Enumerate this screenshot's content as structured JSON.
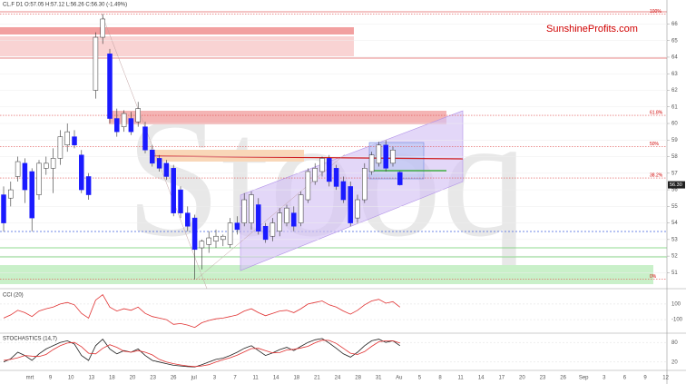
{
  "chart_data": {
    "type": "candlestick",
    "title": "CL.F  D1  O:57.05  H:57.12  L:56.26  C:56.30  (-1.49%)",
    "brand": "SunshineProfits.com",
    "watermark": "Stooq",
    "up_color": "#ffffff",
    "down_color": "#1a1aff",
    "ylim": [
      50.2,
      66.9
    ],
    "yticks": [
      51,
      52,
      53,
      54,
      55,
      56,
      57,
      58,
      59,
      60,
      61,
      62,
      63,
      64,
      65,
      66
    ],
    "last_price": {
      "value": 56.3,
      "label": "56.30"
    },
    "fib_levels": [
      {
        "label": "100%",
        "price": 66.6
      },
      {
        "label": "61.8%",
        "price": 60.49
      },
      {
        "label": "50%",
        "price": 58.6
      },
      {
        "label": "38.2%",
        "price": 56.71
      },
      {
        "label": "0%",
        "price": 50.6
      }
    ],
    "open": [
      55.7,
      55.5,
      56.8,
      57.6,
      57.1,
      55.7,
      57.3,
      57.3,
      57.9,
      58.7,
      59.2,
      58.1,
      56.8,
      62.0,
      65.2,
      64.2,
      60.3,
      59.8,
      60.3,
      60.1,
      59.8,
      58.4,
      57.9,
      57.6,
      57.3,
      56.0,
      54.6,
      54.3,
      52.5,
      52.7,
      52.9,
      53.0,
      52.7,
      54.0,
      54.0,
      54.0,
      55.1,
      53.8,
      53.2,
      53.5,
      54.0,
      54.6,
      54.0,
      55.4,
      56.5,
      57.1,
      57.9,
      57.3,
      56.5,
      56.2,
      54.3,
      55.4,
      57.1,
      57.6,
      58.7,
      57.6,
      57.05
    ],
    "high": [
      56.2,
      56.5,
      58.0,
      57.9,
      57.3,
      57.8,
      58.0,
      58.5,
      59.6,
      60.0,
      59.6,
      58.4,
      57.0,
      65.5,
      66.6,
      64.5,
      60.9,
      60.8,
      60.7,
      61.3,
      60.1,
      58.7,
      58.1,
      57.8,
      57.5,
      56.2,
      55.0,
      54.5,
      53.0,
      53.5,
      53.6,
      53.3,
      54.3,
      54.4,
      55.8,
      55.9,
      55.5,
      54.0,
      54.3,
      54.9,
      55.1,
      55.0,
      55.9,
      57.3,
      57.6,
      58.0,
      58.1,
      57.5,
      56.8,
      56.5,
      55.7,
      57.6,
      58.3,
      58.9,
      59.0,
      58.6,
      57.12
    ],
    "low": [
      53.5,
      55.0,
      56.5,
      55.2,
      53.5,
      55.4,
      56.9,
      55.8,
      57.5,
      58.3,
      58.5,
      55.8,
      55.4,
      61.5,
      64.8,
      60.0,
      59.2,
      59.5,
      59.3,
      59.8,
      58.2,
      57.4,
      57.1,
      56.6,
      54.4,
      54.3,
      53.5,
      50.6,
      51.2,
      52.2,
      52.5,
      52.6,
      52.5,
      53.3,
      53.8,
      53.6,
      53.3,
      52.8,
      52.9,
      53.2,
      53.8,
      53.5,
      53.8,
      55.2,
      56.3,
      56.8,
      56.2,
      56.0,
      55.2,
      53.8,
      54.0,
      55.2,
      56.9,
      57.4,
      57.1,
      57.4,
      56.26
    ],
    "close": [
      54.0,
      56.0,
      57.7,
      56.0,
      54.3,
      57.6,
      57.6,
      57.9,
      59.2,
      59.5,
      58.7,
      56.0,
      55.7,
      65.2,
      66.3,
      60.3,
      59.5,
      60.6,
      59.5,
      60.9,
      58.4,
      57.6,
      57.3,
      56.8,
      54.6,
      54.6,
      53.8,
      52.4,
      52.9,
      53.1,
      53.2,
      53.2,
      54.0,
      53.6,
      55.4,
      55.7,
      53.5,
      53.0,
      54.0,
      54.6,
      54.9,
      53.8,
      55.7,
      57.1,
      57.3,
      57.9,
      56.5,
      56.2,
      55.4,
      54.0,
      55.4,
      57.3,
      58.1,
      58.7,
      57.3,
      58.4,
      56.3
    ],
    "x_labels": [
      "mrt",
      "9",
      "10",
      "13",
      "18",
      "20",
      "23",
      "26",
      "jul",
      "3",
      "7",
      "11",
      "14",
      "18",
      "21",
      "24",
      "28",
      "31",
      "Au",
      "5",
      "8",
      "11",
      "14",
      "17",
      "20",
      "23",
      "26",
      "Sep",
      "3",
      "6",
      "9",
      "12"
    ],
    "indicators": [
      {
        "name": "CCI (20)",
        "color": "#e03030",
        "ylim": [
          -250,
          250
        ],
        "yticks": [
          100,
          -100
        ],
        "series": [
          {
            "color": "#e03030",
            "values": [
              -80,
              -40,
              20,
              -10,
              -60,
              10,
              40,
              60,
              100,
              120,
              90,
              -20,
              -80,
              150,
              220,
              60,
              10,
              40,
              20,
              60,
              -20,
              -60,
              -80,
              -100,
              -160,
              -150,
              -170,
              -200,
              -140,
              -110,
              -90,
              -80,
              -60,
              -40,
              10,
              40,
              -10,
              -50,
              -20,
              10,
              20,
              -10,
              40,
              100,
              120,
              140,
              90,
              60,
              10,
              -30,
              20,
              90,
              140,
              160,
              110,
              130,
              60
            ]
          }
        ]
      },
      {
        "name": "STOCHASTICS (14,7)",
        "ylim": [
          0,
          100
        ],
        "yticks": [
          80,
          20
        ],
        "series": [
          {
            "color": "#202020",
            "values": [
              20,
              30,
              50,
              40,
              25,
              45,
              60,
              70,
              80,
              85,
              75,
              40,
              25,
              70,
              90,
              60,
              45,
              55,
              50,
              60,
              40,
              25,
              20,
              15,
              10,
              8,
              6,
              5,
              12,
              20,
              28,
              32,
              40,
              50,
              62,
              70,
              55,
              40,
              48,
              58,
              65,
              55,
              68,
              80,
              88,
              92,
              78,
              62,
              45,
              35,
              50,
              70,
              85,
              90,
              80,
              85,
              70
            ]
          },
          {
            "color": "#e03030",
            "values": [
              25,
              28,
              33,
              40,
              38,
              37,
              43,
              58,
              70,
              78,
              80,
              67,
              47,
              45,
              62,
              73,
              65,
              53,
              50,
              55,
              50,
              42,
              28,
              20,
              15,
              11,
              8,
              6,
              8,
              12,
              20,
              27,
              33,
              41,
              51,
              61,
              62,
              55,
              48,
              49,
              57,
              59,
              63,
              68,
              79,
              87,
              86,
              77,
              62,
              47,
              43,
              52,
              68,
              82,
              85,
              85,
              78
            ]
          }
        ]
      }
    ]
  }
}
